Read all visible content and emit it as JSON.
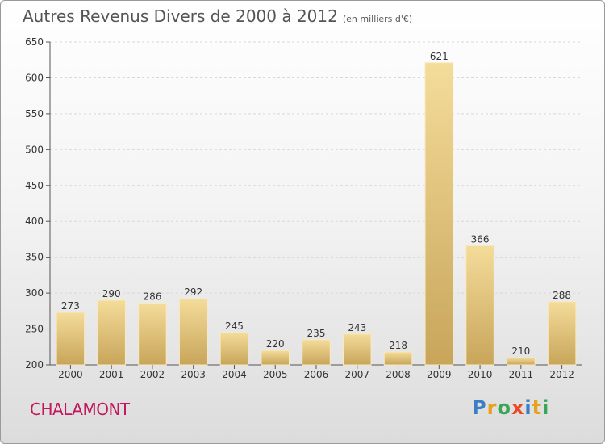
{
  "header": {
    "title": "Autres Revenus Divers de 2000 à 2012",
    "subtitle": "(en milliers d'€)"
  },
  "footer": {
    "place": "CHALAMONT",
    "logo": [
      "P",
      "r",
      "o",
      "x",
      "i",
      "t",
      "i"
    ],
    "logo_colors": [
      "#3a7fc4",
      "#e7a11c",
      "#3aa655",
      "#e94a26",
      "#3a7fc4",
      "#e7a11c",
      "#3aa655"
    ]
  },
  "chart_data": {
    "type": "bar",
    "title": "Autres Revenus Divers de 2000 à 2012",
    "subtitle": "(en milliers d'€)",
    "categories": [
      "2000",
      "2001",
      "2002",
      "2003",
      "2004",
      "2005",
      "2006",
      "2007",
      "2008",
      "2009",
      "2010",
      "2011",
      "2012"
    ],
    "values": [
      273,
      290,
      286,
      292,
      245,
      220,
      235,
      243,
      218,
      621,
      366,
      210,
      288
    ],
    "ylim": [
      200,
      650
    ],
    "yticks": [
      200,
      250,
      300,
      350,
      400,
      450,
      500,
      550,
      600,
      650
    ],
    "grid": true,
    "bar_color": "#e2c27a",
    "bar_color_light": "#f4dc9a",
    "bar_color_dark": "#c8a55a"
  }
}
